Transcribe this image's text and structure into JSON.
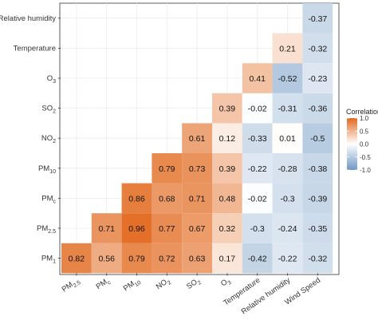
{
  "chart_data": {
    "type": "heatmap",
    "x_labels": [
      {
        "base": "PM",
        "sub": "2.5"
      },
      {
        "base": "PM",
        "sub": "c"
      },
      {
        "base": "PM",
        "sub": "10"
      },
      {
        "base": "NO",
        "sub": "2"
      },
      {
        "base": "SO",
        "sub": "2"
      },
      {
        "base": "O",
        "sub": "3"
      },
      {
        "base": "Temperature",
        "sub": ""
      },
      {
        "base": "Relative humidity",
        "sub": ""
      },
      {
        "base": "Wind Speed",
        "sub": ""
      }
    ],
    "y_labels": [
      {
        "base": "PM",
        "sub": "1"
      },
      {
        "base": "PM",
        "sub": "2.5"
      },
      {
        "base": "PM",
        "sub": "c"
      },
      {
        "base": "PM",
        "sub": "10"
      },
      {
        "base": "NO",
        "sub": "2"
      },
      {
        "base": "SO",
        "sub": "2"
      },
      {
        "base": "O",
        "sub": "3"
      },
      {
        "base": "Temperature",
        "sub": ""
      },
      {
        "base": "Relative humidity",
        "sub": ""
      }
    ],
    "values": [
      [
        0.82,
        0.56,
        0.79,
        0.72,
        0.63,
        0.17,
        -0.42,
        -0.22,
        -0.32
      ],
      [
        0.71,
        0.96,
        0.77,
        0.67,
        0.32,
        -0.3,
        -0.24,
        -0.35
      ],
      [
        0.86,
        0.68,
        0.71,
        0.48,
        -0.02,
        -0.3,
        -0.39
      ],
      [
        0.79,
        0.73,
        0.39,
        -0.22,
        -0.28,
        -0.38
      ],
      [
        0.61,
        0.12,
        -0.33,
        0.01,
        -0.5
      ],
      [
        0.39,
        -0.02,
        -0.31,
        -0.36
      ],
      [
        0.41,
        -0.52,
        -0.23
      ],
      [
        0.21,
        -0.32
      ],
      [
        -0.37
      ]
    ],
    "value_range": [
      -1,
      1
    ],
    "legend": {
      "title": "Correlation",
      "ticks": [
        "1.0",
        "0.5",
        "0.0",
        "-0.5",
        "-1.0"
      ],
      "placement": "right"
    },
    "colors": {
      "positive": "#e2691f",
      "neutral": "#ffffff",
      "negative": "#6f98c2"
    }
  }
}
